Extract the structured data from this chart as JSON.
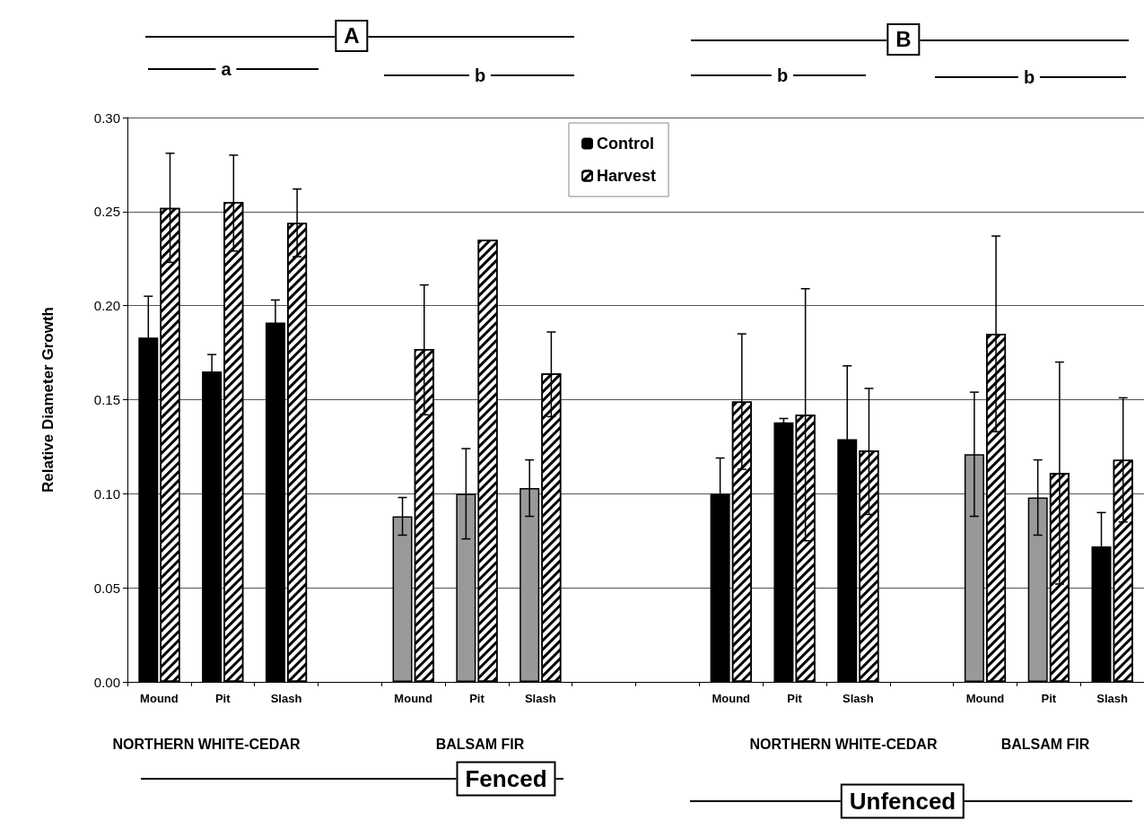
{
  "chart_data": {
    "type": "bar",
    "ylabel": "Relative Diameter Growth",
    "categories": [
      "Mound",
      "Pit",
      "Slash",
      null,
      "Mound",
      "Pit",
      "Slash",
      null,
      null,
      "Mound",
      "Pit",
      "Slash",
      null,
      "Mound",
      "Pit",
      "Slash"
    ],
    "series": [
      {
        "name": "Control",
        "color": "#000000",
        "colors": [
          "#000000",
          "#000000",
          "#000000",
          null,
          "#999999",
          "#999999",
          "#999999",
          null,
          null,
          "#000000",
          "#000000",
          "#000000",
          null,
          "#999999",
          "#999999",
          "#000000"
        ],
        "values": [
          0.183,
          0.165,
          0.191,
          null,
          0.088,
          0.1,
          0.103,
          null,
          null,
          0.1,
          0.138,
          0.129,
          null,
          0.121,
          0.098,
          0.072
        ],
        "errors": [
          0.022,
          0.009,
          0.012,
          null,
          [
            0.078,
            0.098
          ],
          [
            0.076,
            0.124
          ],
          [
            0.088,
            0.118
          ],
          null,
          null,
          0.019,
          0.002,
          0.039,
          null,
          [
            0.088,
            0.154
          ],
          [
            0.078,
            0.118
          ],
          0.018
        ]
      },
      {
        "name": "Harvest",
        "color": "#ffffff",
        "values": [
          0.252,
          0.255,
          0.244,
          null,
          0.177,
          0.235,
          0.164,
          null,
          null,
          0.149,
          0.142,
          0.123,
          null,
          0.185,
          0.111,
          0.118
        ],
        "errors": [
          [
            0.223,
            0.281
          ],
          [
            0.229,
            0.28
          ],
          [
            0.226,
            0.262
          ],
          null,
          [
            0.142,
            0.211
          ],
          null,
          [
            0.141,
            0.186
          ],
          null,
          null,
          [
            0.113,
            0.185
          ],
          [
            0.075,
            0.209
          ],
          [
            0.089,
            0.156
          ],
          null,
          [
            0.133,
            0.237
          ],
          [
            0.052,
            0.17
          ],
          [
            0.085,
            0.151
          ]
        ]
      }
    ],
    "ylim": [
      0,
      0.3
    ],
    "yticks": [
      {
        "value": 0,
        "label": "0.00"
      },
      {
        "value": 0.05,
        "label": "0.05"
      },
      {
        "value": 0.1,
        "label": "0.10"
      },
      {
        "value": 0.15,
        "label": "0.15"
      },
      {
        "value": 0.2,
        "label": "0.20"
      },
      {
        "value": 0.25,
        "label": "0.25"
      },
      {
        "value": 0.3,
        "label": "0.30"
      }
    ],
    "grid": "y",
    "legend": "top",
    "annotations": [
      "A",
      "B",
      "a",
      "b",
      "b",
      "b",
      "NORTHERN WHITE-CEDAR",
      "BALSAM FIR",
      "NORTHERN WHITE-CEDAR",
      "BALSAM FIR",
      "Fenced",
      "Unfenced"
    ]
  }
}
